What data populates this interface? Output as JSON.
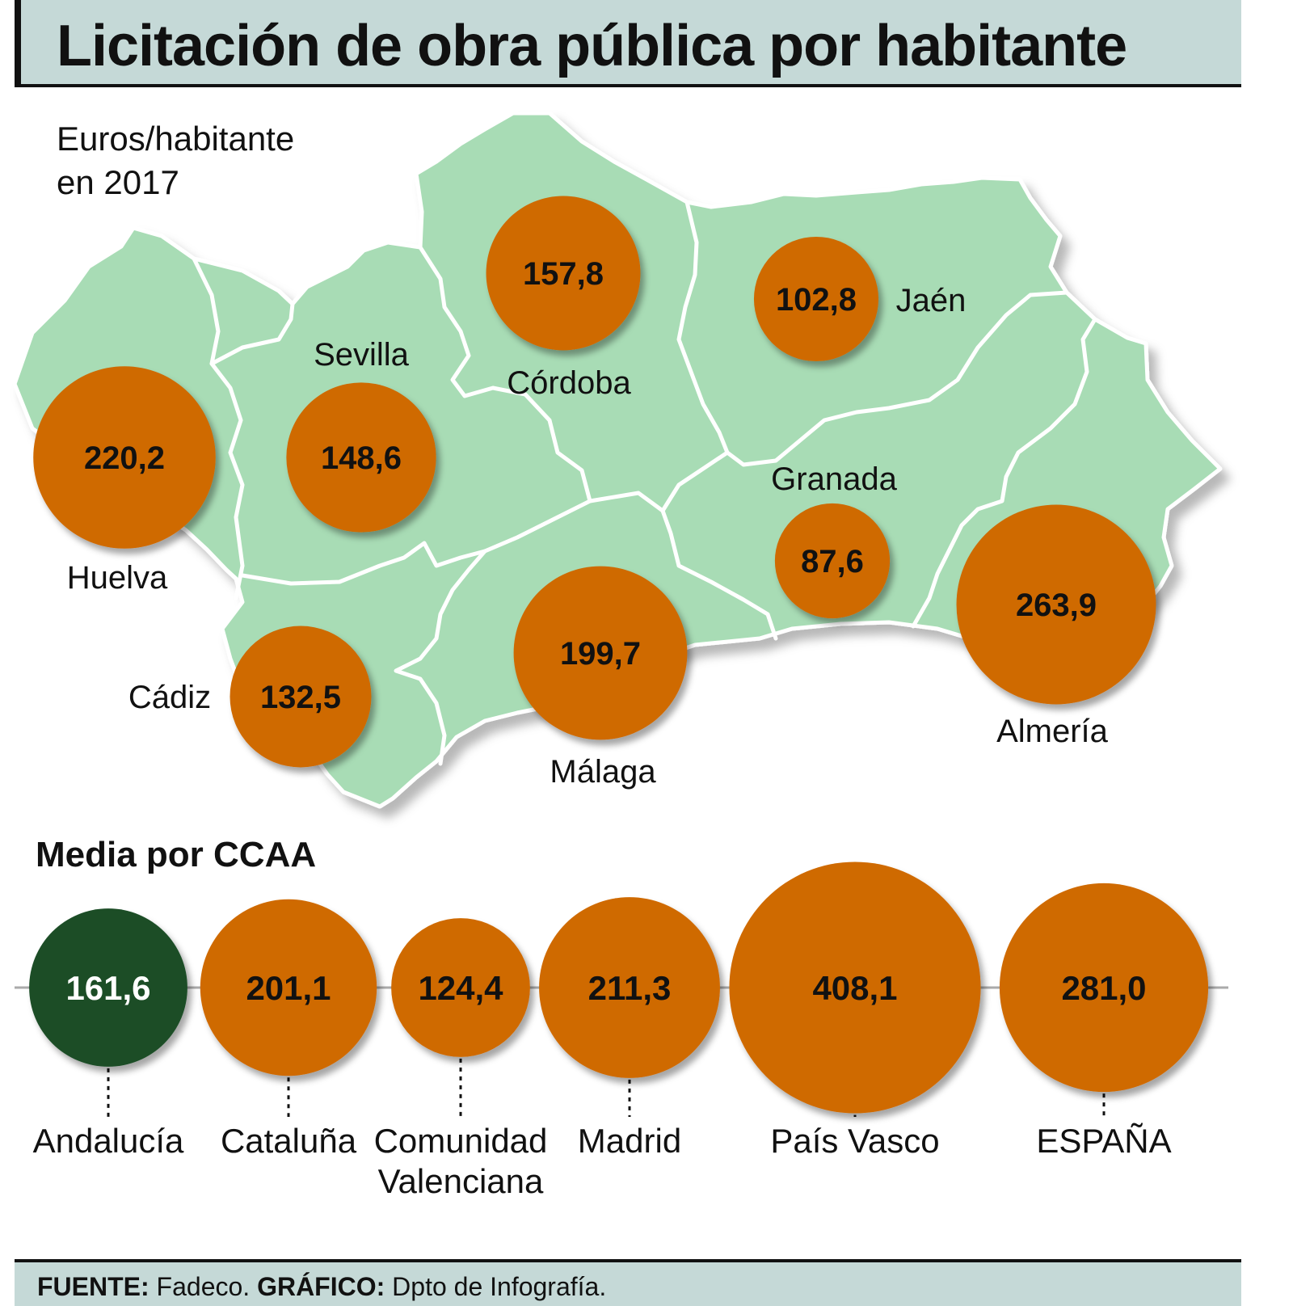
{
  "title": "Licitación de obra pública por habitante",
  "subtitle": [
    "Euros/habitante",
    "en 2017"
  ],
  "section_title": "Media por CCAA",
  "footer": {
    "source_label": "FUENTE:",
    "source_value": "Fadeco.",
    "graphic_label": "GRÁFICO:",
    "graphic_value": "Dpto de Infografía."
  },
  "colors": {
    "map_fill": "#a8dcb5",
    "map_border": "#ffffff",
    "bubble": "#cf6a00",
    "bubble_highlight": "#1b4d28",
    "title_bg": "#c5d9d7"
  },
  "chart_data": [
    {
      "type": "bubble-map",
      "title": "Licitación de obra pública por habitante",
      "unit": "Euros/habitante en 2017",
      "region": "Andalucía",
      "categories": [
        "Huelva",
        "Sevilla",
        "Córdoba",
        "Jaén",
        "Granada",
        "Almería",
        "Málaga",
        "Cádiz"
      ],
      "values": [
        220.2,
        148.6,
        157.8,
        102.8,
        87.6,
        263.9,
        199.7,
        132.5
      ],
      "labels": [
        "220,2",
        "148,6",
        "157,8",
        "102,8",
        "87,6",
        "263,9",
        "199,7",
        "132,5"
      ]
    },
    {
      "type": "bubble",
      "title": "Media por CCAA",
      "unit": "Euros/habitante en 2017",
      "categories": [
        "Andalucía",
        "Cataluña",
        "Comunidad Valenciana",
        "Madrid",
        "País Vasco",
        "ESPAÑA"
      ],
      "category_lines": [
        [
          "Andalucía"
        ],
        [
          "Cataluña"
        ],
        [
          "Comunidad",
          "Valenciana"
        ],
        [
          "Madrid"
        ],
        [
          "País Vasco"
        ],
        [
          "ESPAÑA"
        ]
      ],
      "values": [
        161.6,
        201.1,
        124.4,
        211.3,
        408.1,
        281.0
      ],
      "labels": [
        "161,6",
        "201,1",
        "124,4",
        "211,3",
        "408,1",
        "281,0"
      ],
      "highlight": "Andalucía"
    }
  ]
}
